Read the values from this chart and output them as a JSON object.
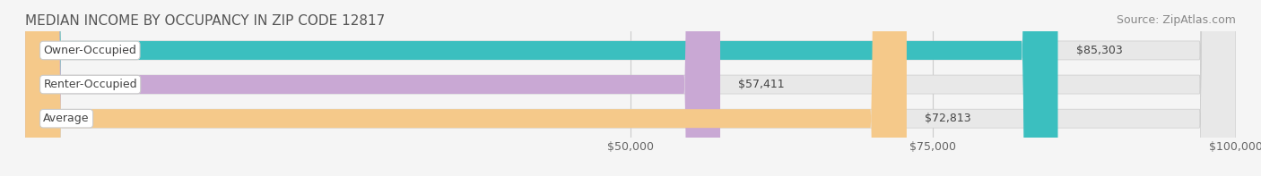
{
  "title": "MEDIAN INCOME BY OCCUPANCY IN ZIP CODE 12817",
  "source": "Source: ZipAtlas.com",
  "categories": [
    "Owner-Occupied",
    "Renter-Occupied",
    "Average"
  ],
  "values": [
    85303,
    57411,
    72813
  ],
  "bar_colors": [
    "#3bbfbf",
    "#c9a8d4",
    "#f5c98a"
  ],
  "value_labels": [
    "$85,303",
    "$57,411",
    "$72,813"
  ],
  "xlim": [
    0,
    100000
  ],
  "xticks": [
    50000,
    75000,
    100000
  ],
  "xtick_labels": [
    "$50,000",
    "$75,000",
    "$100,000"
  ],
  "background_color": "#f5f5f5",
  "bar_background_color": "#e8e8e8",
  "title_fontsize": 11,
  "source_fontsize": 9,
  "label_fontsize": 9,
  "tick_fontsize": 9
}
